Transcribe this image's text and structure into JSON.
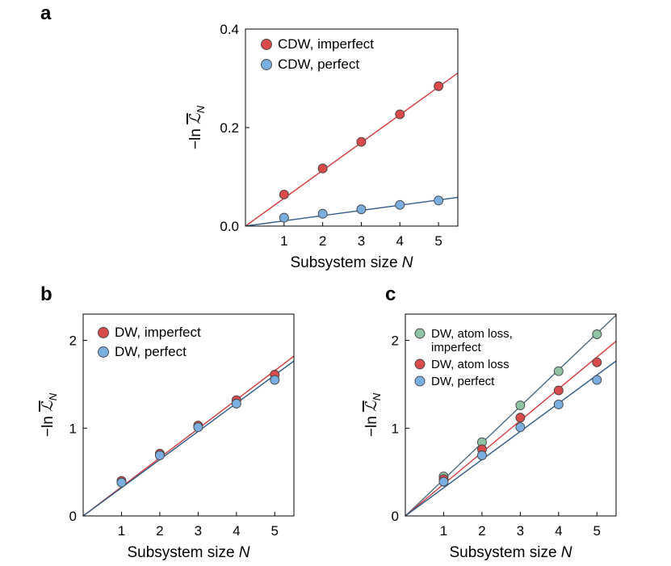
{
  "panels": [
    {
      "letter": "a",
      "chart_data": {
        "type": "scatter",
        "xlabel_prefix": "Subsystem size ",
        "xlabel_var": "N",
        "ylabel_prefix": "−ln ",
        "ylabel_symbol": "ℒ",
        "ylabel_sub": "N",
        "xlim": [
          0,
          5.5
        ],
        "ylim": [
          0,
          0.4
        ],
        "xticks": [
          1,
          2,
          3,
          4,
          5
        ],
        "yticks": [
          0,
          0.2,
          0.4
        ],
        "ytick_labels": [
          "0.0",
          "0.2",
          "0.4"
        ],
        "legend_position": "top-left",
        "series": [
          {
            "name": "CDW, imperfect",
            "color": "#d94a4a",
            "line_color": "#d33a3a",
            "x": [
              1,
              2,
              3,
              4,
              5
            ],
            "y": [
              0.064,
              0.117,
              0.171,
              0.227,
              0.284
            ],
            "fit_slope": 0.0565
          },
          {
            "name": "CDW, perfect",
            "color": "#7aaee0",
            "line_color": "#2e5b8a",
            "x": [
              1,
              2,
              3,
              4,
              5
            ],
            "y": [
              0.017,
              0.025,
              0.034,
              0.043,
              0.052
            ],
            "fit_slope": 0.0106
          }
        ]
      }
    },
    {
      "letter": "b",
      "chart_data": {
        "type": "scatter",
        "xlabel_prefix": "Subsystem size ",
        "xlabel_var": "N",
        "ylabel_prefix": "−ln ",
        "ylabel_symbol": "ℒ",
        "ylabel_sub": "N",
        "xlim": [
          0,
          5.5
        ],
        "ylim": [
          0,
          2.3
        ],
        "xticks": [
          1,
          2,
          3,
          4,
          5
        ],
        "yticks": [
          0,
          1,
          2
        ],
        "ytick_labels": [
          "0",
          "1",
          "2"
        ],
        "legend_position": "top-left",
        "series": [
          {
            "name": "DW, imperfect",
            "color": "#d94a4a",
            "line_color": "#d33a3a",
            "x": [
              1,
              2,
              3,
              4,
              5
            ],
            "y": [
              0.4,
              0.71,
              1.03,
              1.32,
              1.61
            ],
            "fit_slope": 0.331
          },
          {
            "name": "DW, perfect",
            "color": "#7aaee0",
            "line_color": "#2e5b8a",
            "x": [
              1,
              2,
              3,
              4,
              5
            ],
            "y": [
              0.38,
              0.69,
              1.01,
              1.28,
              1.55
            ],
            "fit_slope": 0.321
          }
        ]
      }
    },
    {
      "letter": "c",
      "chart_data": {
        "type": "scatter",
        "xlabel_prefix": "Subsystem size ",
        "xlabel_var": "N",
        "ylabel_prefix": "−ln ",
        "ylabel_symbol": "ℒ",
        "ylabel_sub": "N",
        "xlim": [
          0,
          5.5
        ],
        "ylim": [
          0,
          2.3
        ],
        "xticks": [
          1,
          2,
          3,
          4,
          5
        ],
        "yticks": [
          0,
          1,
          2
        ],
        "ytick_labels": [
          "0",
          "1",
          "2"
        ],
        "legend_position": "top-left",
        "series": [
          {
            "name": "DW, atom loss, imperfect",
            "name_lines": [
              "DW, atom loss,",
              "imperfect"
            ],
            "color": "#8fc4a2",
            "line_color": "#4a6a80",
            "x": [
              1,
              2,
              3,
              4,
              5
            ],
            "y": [
              0.45,
              0.84,
              1.26,
              1.65,
              2.07
            ],
            "fit_slope": 0.416
          },
          {
            "name": "DW, atom loss",
            "name_lines": [
              "DW, atom loss"
            ],
            "color": "#d94a4a",
            "line_color": "#d33a3a",
            "x": [
              1,
              2,
              3,
              4,
              5
            ],
            "y": [
              0.42,
              0.76,
              1.12,
              1.43,
              1.75
            ],
            "fit_slope": 0.362
          },
          {
            "name": "DW, perfect",
            "name_lines": [
              "DW, perfect"
            ],
            "color": "#7aaee0",
            "line_color": "#2e5b8a",
            "x": [
              1,
              2,
              3,
              4,
              5
            ],
            "y": [
              0.39,
              0.69,
              1.01,
              1.27,
              1.55
            ],
            "fit_slope": 0.321
          }
        ]
      }
    }
  ]
}
